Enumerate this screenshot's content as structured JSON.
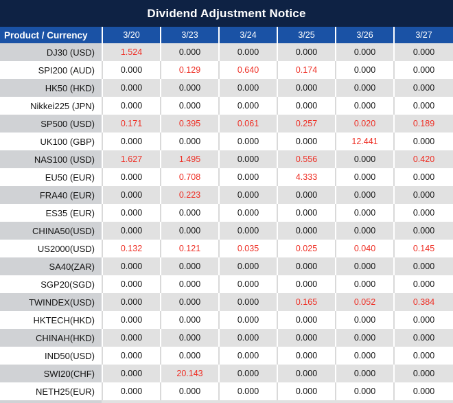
{
  "title": "Dividend Adjustment Notice",
  "colors": {
    "title_bg": "#0e2244",
    "header_bg": "#1a52a5",
    "gray_row_product_bg": "#d0d2d5",
    "gray_row_value_bg": "#e1e1e1",
    "white_row_separator": "#d9d9d9",
    "nonzero_value_red": "#ee2e24",
    "value_black": "#141414"
  },
  "table": {
    "product_header": "Product / Currency",
    "date_headers": [
      "3/20",
      "3/23",
      "3/24",
      "3/25",
      "3/26",
      "3/27"
    ],
    "rows": [
      {
        "product": "DJ30 (USD)",
        "values": [
          "1.524",
          "0.000",
          "0.000",
          "0.000",
          "0.000",
          "0.000"
        ]
      },
      {
        "product": "SPI200 (AUD)",
        "values": [
          "0.000",
          "0.129",
          "0.640",
          "0.174",
          "0.000",
          "0.000"
        ]
      },
      {
        "product": "HK50 (HKD)",
        "values": [
          "0.000",
          "0.000",
          "0.000",
          "0.000",
          "0.000",
          "0.000"
        ]
      },
      {
        "product": "Nikkei225 (JPN)",
        "values": [
          "0.000",
          "0.000",
          "0.000",
          "0.000",
          "0.000",
          "0.000"
        ]
      },
      {
        "product": "SP500 (USD)",
        "values": [
          "0.171",
          "0.395",
          "0.061",
          "0.257",
          "0.020",
          "0.189"
        ]
      },
      {
        "product": "UK100 (GBP)",
        "values": [
          "0.000",
          "0.000",
          "0.000",
          "0.000",
          "12.441",
          "0.000"
        ]
      },
      {
        "product": "NAS100 (USD)",
        "values": [
          "1.627",
          "1.495",
          "0.000",
          "0.556",
          "0.000",
          "0.420"
        ]
      },
      {
        "product": "EU50 (EUR)",
        "values": [
          "0.000",
          "0.708",
          "0.000",
          "4.333",
          "0.000",
          "0.000"
        ]
      },
      {
        "product": "FRA40 (EUR)",
        "values": [
          "0.000",
          "0.223",
          "0.000",
          "0.000",
          "0.000",
          "0.000"
        ]
      },
      {
        "product": "ES35 (EUR)",
        "values": [
          "0.000",
          "0.000",
          "0.000",
          "0.000",
          "0.000",
          "0.000"
        ]
      },
      {
        "product": "CHINA50(USD)",
        "values": [
          "0.000",
          "0.000",
          "0.000",
          "0.000",
          "0.000",
          "0.000"
        ]
      },
      {
        "product": "US2000(USD)",
        "values": [
          "0.132",
          "0.121",
          "0.035",
          "0.025",
          "0.040",
          "0.145"
        ]
      },
      {
        "product": "SA40(ZAR)",
        "values": [
          "0.000",
          "0.000",
          "0.000",
          "0.000",
          "0.000",
          "0.000"
        ]
      },
      {
        "product": "SGP20(SGD)",
        "values": [
          "0.000",
          "0.000",
          "0.000",
          "0.000",
          "0.000",
          "0.000"
        ]
      },
      {
        "product": "TWINDEX(USD)",
        "values": [
          "0.000",
          "0.000",
          "0.000",
          "0.165",
          "0.052",
          "0.384"
        ]
      },
      {
        "product": "HKTECH(HKD)",
        "values": [
          "0.000",
          "0.000",
          "0.000",
          "0.000",
          "0.000",
          "0.000"
        ]
      },
      {
        "product": "CHINAH(HKD)",
        "values": [
          "0.000",
          "0.000",
          "0.000",
          "0.000",
          "0.000",
          "0.000"
        ]
      },
      {
        "product": "IND50(USD)",
        "values": [
          "0.000",
          "0.000",
          "0.000",
          "0.000",
          "0.000",
          "0.000"
        ]
      },
      {
        "product": "SWI20(CHF)",
        "values": [
          "0.000",
          "20.143",
          "0.000",
          "0.000",
          "0.000",
          "0.000"
        ]
      },
      {
        "product": "NETH25(EUR)",
        "values": [
          "0.000",
          "0.000",
          "0.000",
          "0.000",
          "0.000",
          "0.000"
        ]
      }
    ]
  }
}
